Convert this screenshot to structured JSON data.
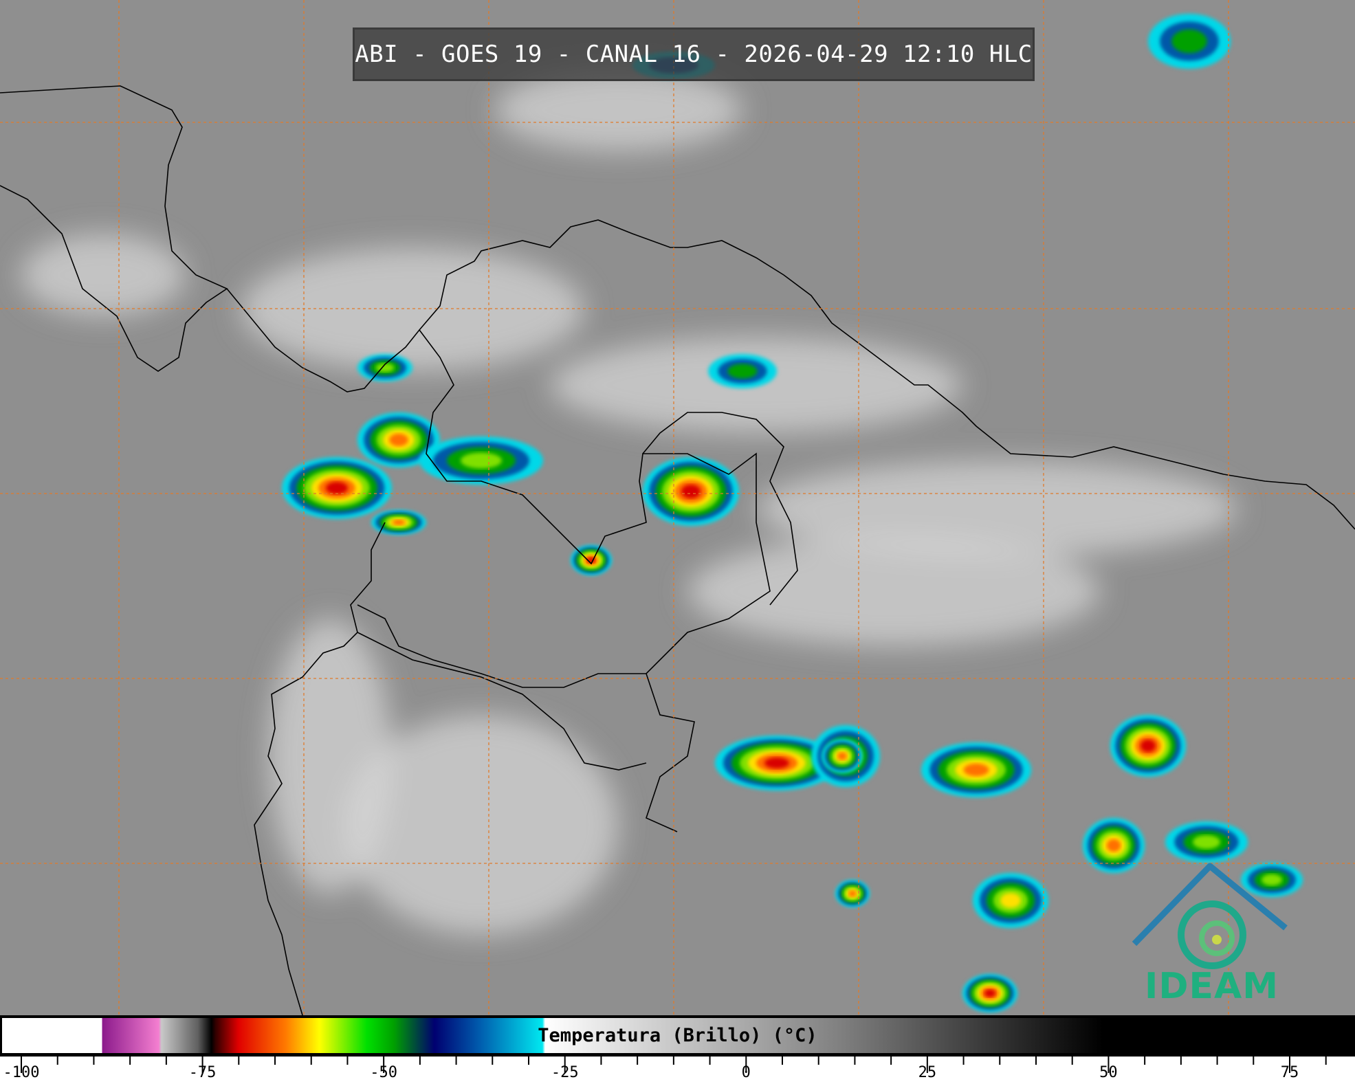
{
  "title": "ABI - GOES 19 - CANAL 16 - 2026-04-29 12:10 HLC",
  "colorbar": {
    "label": "Temperatura (Brillo) (°C)",
    "range": [
      -100,
      85
    ],
    "tick_labels": [
      "-100",
      "-75",
      "-50",
      "-25",
      "0",
      "25",
      "50",
      "75"
    ],
    "tick_values": [
      -100,
      -75,
      -50,
      -25,
      0,
      25,
      50,
      75
    ],
    "colors": {
      "cold_white": "#ffffff",
      "purple": "#8b1a8b",
      "pink": "#f47fd0",
      "red": "#e00000",
      "orange": "#ff7a00",
      "yellow": "#ffff00",
      "green": "#00e000",
      "navy": "#000070",
      "blue": "#0060b0",
      "cyan": "#00e8f0",
      "warm_black": "#000000"
    }
  },
  "map": {
    "grid_color": "#e07a2a",
    "coastline_color": "#000000",
    "background_color": "#8c8c8c"
  },
  "logo": {
    "text": "IDEAM",
    "color": "#1fb07f",
    "roof_color": "#2a7fae"
  }
}
